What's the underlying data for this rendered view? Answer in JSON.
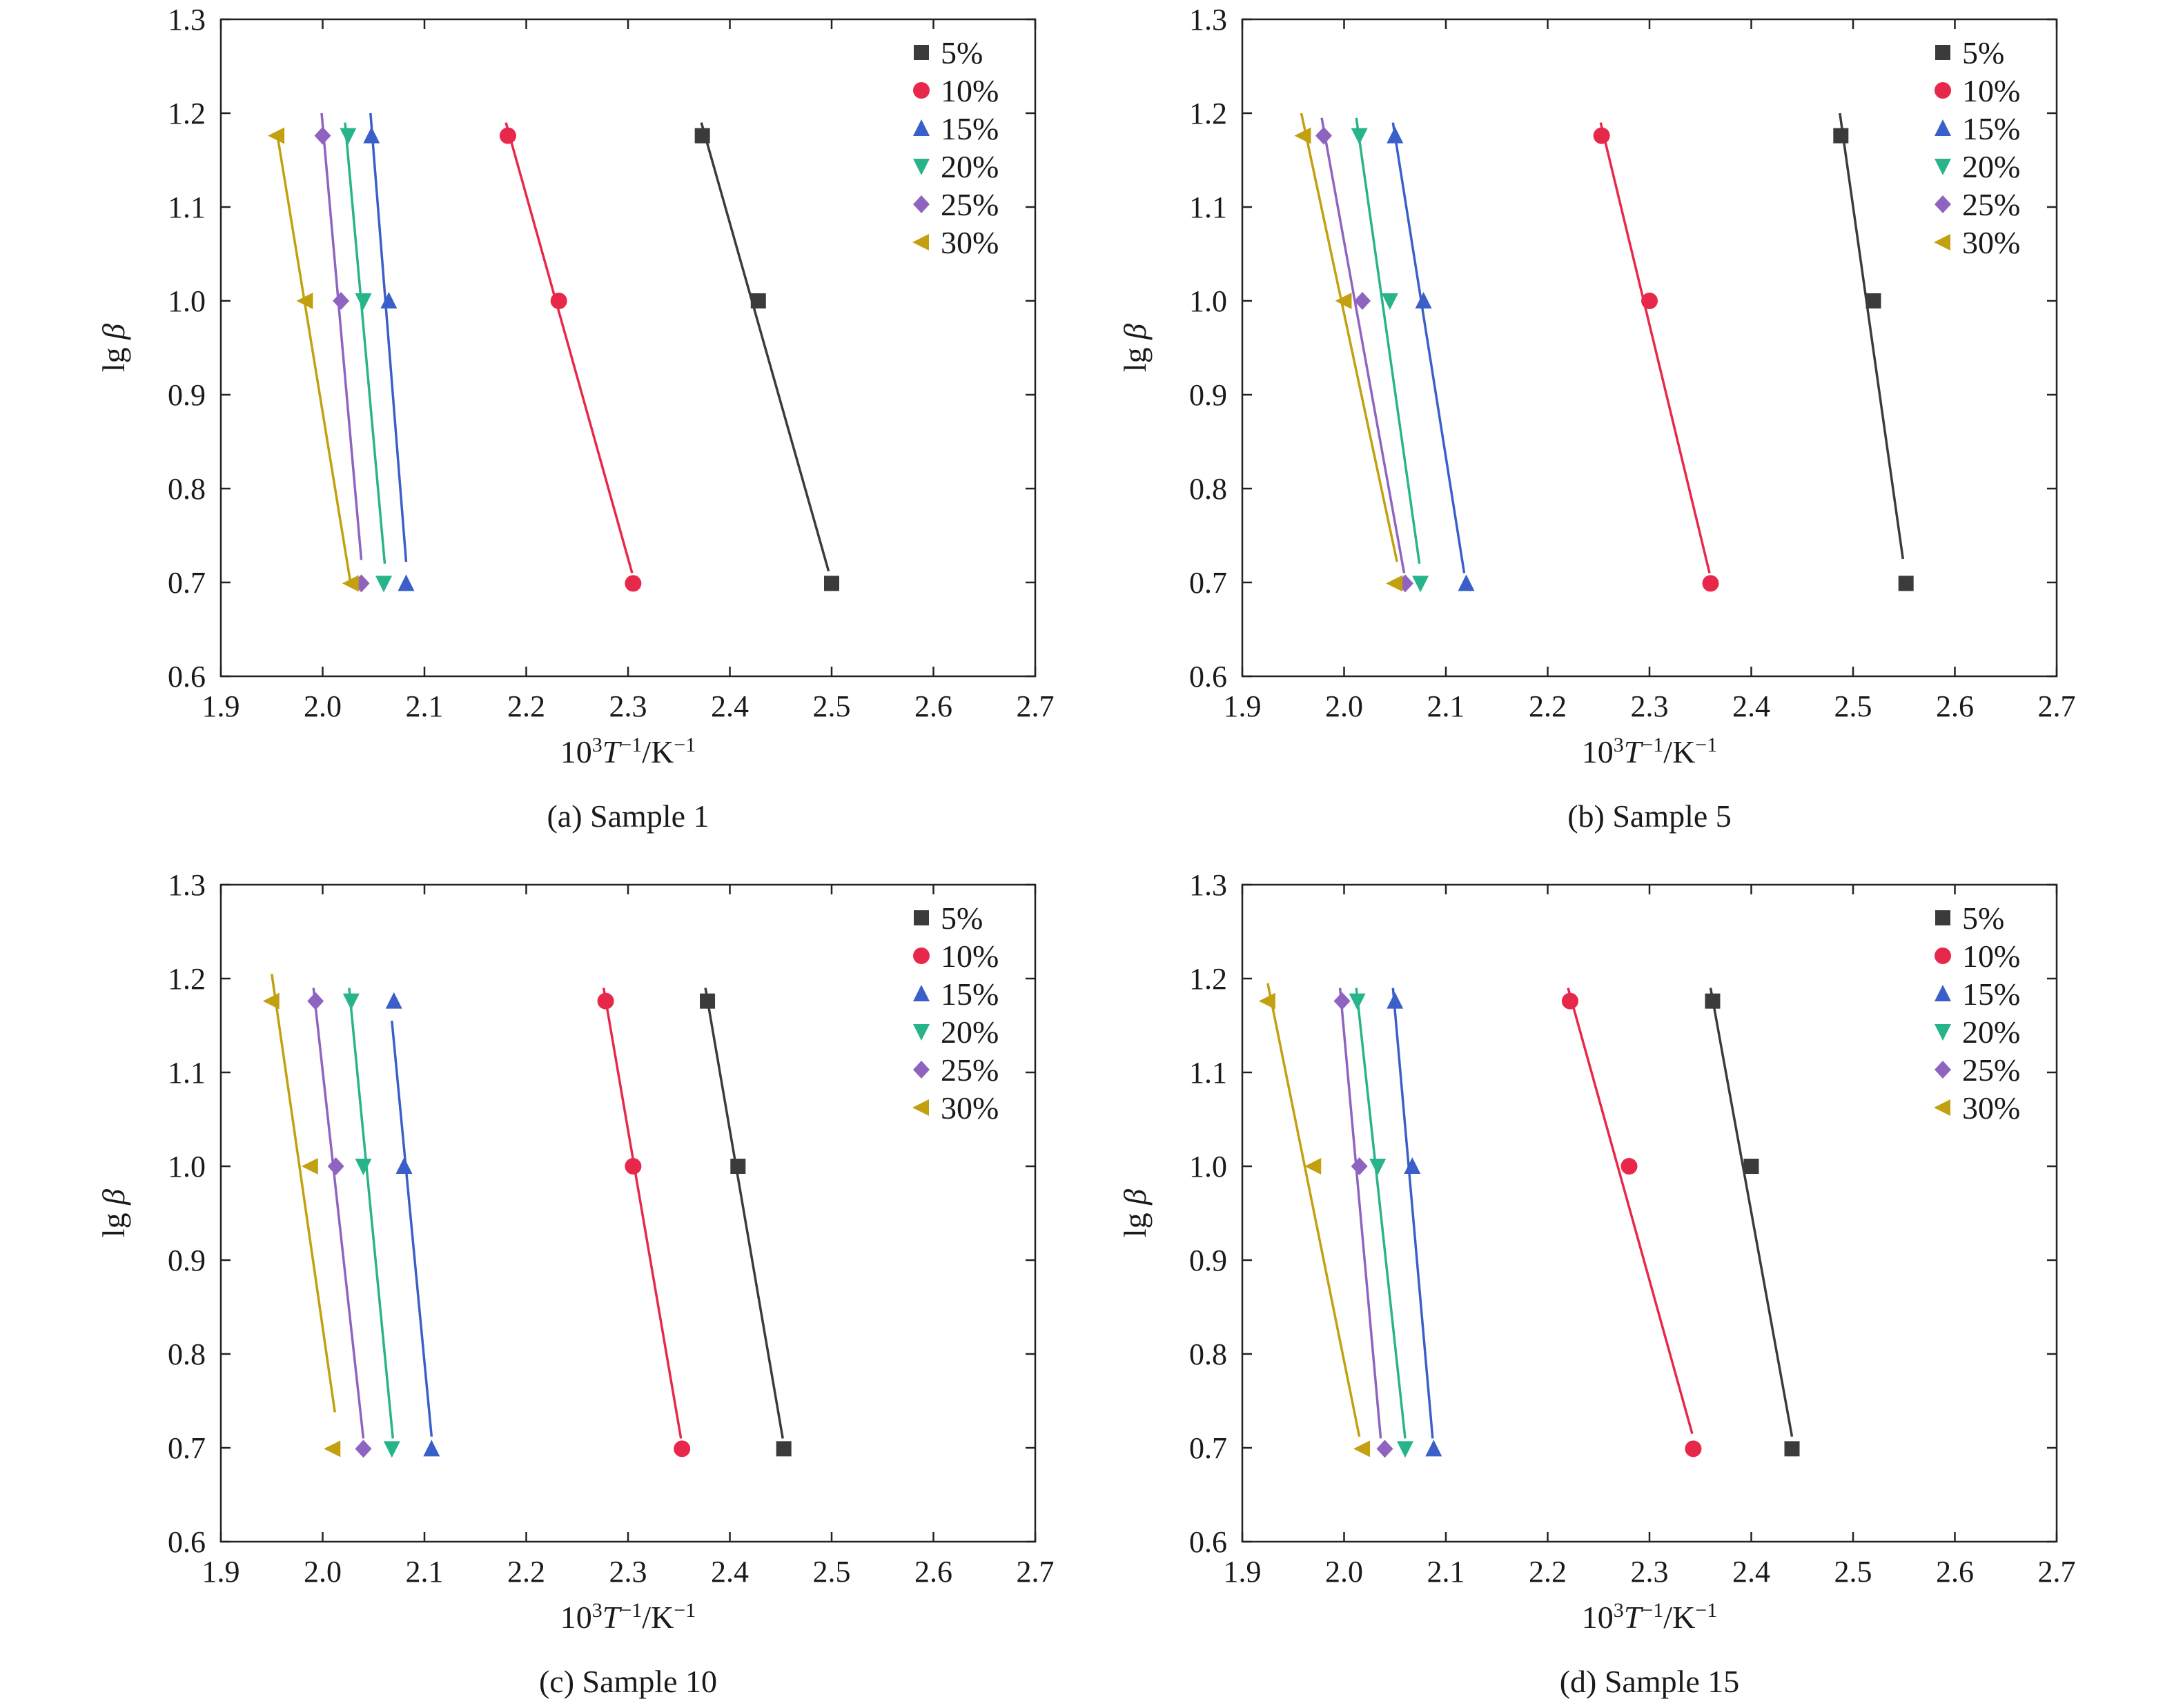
{
  "chart_data": [
    {
      "type": "scatter",
      "caption": "(a) Sample 1",
      "xlabel_prefix": "10",
      "xlabel_sup1": "3",
      "xlabel_T": "T",
      "xlabel_sup2": "−1",
      "xlabel_mid": "/K",
      "xlabel_sup3": "−1",
      "ylabel_lg": "lg ",
      "ylabel_beta": "β",
      "xlim": [
        1.9,
        2.7
      ],
      "ylim": [
        0.6,
        1.3
      ],
      "xticks": [
        "1.9",
        "2.0",
        "2.1",
        "2.2",
        "2.3",
        "2.4",
        "2.5",
        "2.6",
        "2.7"
      ],
      "yticks": [
        "0.6",
        "0.7",
        "0.8",
        "0.9",
        "1.0",
        "1.1",
        "1.2",
        "1.3"
      ],
      "grid": false,
      "legend": "top-right",
      "series": [
        {
          "name": "5%",
          "marker": "square",
          "color": "#3b3b3b",
          "x": [
            2.373,
            2.428,
            2.5
          ],
          "y": [
            1.176,
            1.0,
            0.699
          ],
          "fit": [
            [
              2.372,
              1.19
            ],
            [
              2.497,
              0.712
            ]
          ]
        },
        {
          "name": "10%",
          "marker": "circle",
          "color": "#e8284a",
          "x": [
            2.182,
            2.232,
            2.305
          ],
          "y": [
            1.176,
            1.0,
            0.699
          ],
          "fit": [
            [
              2.18,
              1.19
            ],
            [
              2.304,
              0.71
            ]
          ]
        },
        {
          "name": "15%",
          "marker": "triangle-up",
          "color": "#3a5fc8",
          "x": [
            2.048,
            2.065,
            2.082
          ],
          "y": [
            1.176,
            1.0,
            0.699
          ],
          "fit": [
            [
              2.047,
              1.2
            ],
            [
              2.082,
              0.722
            ]
          ]
        },
        {
          "name": "20%",
          "marker": "triangle-down",
          "color": "#28b48a",
          "x": [
            2.025,
            2.04,
            2.06
          ],
          "y": [
            1.176,
            1.0,
            0.699
          ],
          "fit": [
            [
              2.022,
              1.19
            ],
            [
              2.061,
              0.72
            ]
          ]
        },
        {
          "name": "25%",
          "marker": "diamond",
          "color": "#8e64c0",
          "x": [
            2.0,
            2.018,
            2.038
          ],
          "y": [
            1.176,
            1.0,
            0.699
          ],
          "fit": [
            [
              1.999,
              1.2
            ],
            [
              2.038,
              0.724
            ]
          ]
        },
        {
          "name": "30%",
          "marker": "triangle-left",
          "color": "#c2a010",
          "x": [
            1.955,
            1.983,
            2.028
          ],
          "y": [
            1.176,
            1.0,
            0.699
          ],
          "fit": [
            [
              1.955,
              1.18
            ],
            [
              2.027,
              0.702
            ]
          ]
        }
      ]
    },
    {
      "type": "scatter",
      "caption": "(b) Sample 5",
      "xlabel_prefix": "10",
      "xlabel_sup1": "3",
      "xlabel_T": "T",
      "xlabel_sup2": "−1",
      "xlabel_mid": "/K",
      "xlabel_sup3": "−1",
      "ylabel_lg": "lg ",
      "ylabel_beta": "β",
      "xlim": [
        1.9,
        2.7
      ],
      "ylim": [
        0.6,
        1.3
      ],
      "xticks": [
        "1.9",
        "2.0",
        "2.1",
        "2.2",
        "2.3",
        "2.4",
        "2.5",
        "2.6",
        "2.7"
      ],
      "yticks": [
        "0.6",
        "0.7",
        "0.8",
        "0.9",
        "1.0",
        "1.1",
        "1.2",
        "1.3"
      ],
      "grid": false,
      "legend": "top-right",
      "series": [
        {
          "name": "5%",
          "marker": "square",
          "color": "#3b3b3b",
          "x": [
            2.488,
            2.52,
            2.552
          ],
          "y": [
            1.176,
            1.0,
            0.699
          ],
          "fit": [
            [
              2.487,
              1.2
            ],
            [
              2.549,
              0.725
            ]
          ]
        },
        {
          "name": "10%",
          "marker": "circle",
          "color": "#e8284a",
          "x": [
            2.253,
            2.3,
            2.36
          ],
          "y": [
            1.176,
            1.0,
            0.699
          ],
          "fit": [
            [
              2.252,
              1.19
            ],
            [
              2.359,
              0.71
            ]
          ]
        },
        {
          "name": "15%",
          "marker": "triangle-up",
          "color": "#3a5fc8",
          "x": [
            2.05,
            2.078,
            2.12
          ],
          "y": [
            1.176,
            1.0,
            0.699
          ],
          "fit": [
            [
              2.048,
              1.19
            ],
            [
              2.118,
              0.71
            ]
          ]
        },
        {
          "name": "20%",
          "marker": "triangle-down",
          "color": "#28b48a",
          "x": [
            2.015,
            2.045,
            2.075
          ],
          "y": [
            1.176,
            1.0,
            0.699
          ],
          "fit": [
            [
              2.012,
              1.195
            ],
            [
              2.074,
              0.72
            ]
          ]
        },
        {
          "name": "25%",
          "marker": "diamond",
          "color": "#8e64c0",
          "x": [
            1.98,
            2.018,
            2.06
          ],
          "y": [
            1.176,
            1.0,
            0.699
          ],
          "fit": [
            [
              1.978,
              1.195
            ],
            [
              2.059,
              0.71
            ]
          ]
        },
        {
          "name": "30%",
          "marker": "triangle-left",
          "color": "#c2a010",
          "x": [
            1.96,
            2.0,
            2.05
          ],
          "y": [
            1.176,
            1.0,
            0.699
          ],
          "fit": [
            [
              1.958,
              1.2
            ],
            [
              2.052,
              0.722
            ]
          ]
        }
      ]
    },
    {
      "type": "scatter",
      "caption": "(c) Sample 10",
      "xlabel_prefix": "10",
      "xlabel_sup1": "3",
      "xlabel_T": "T",
      "xlabel_sup2": "−1",
      "xlabel_mid": "/K",
      "xlabel_sup3": "−1",
      "ylabel_lg": "lg ",
      "ylabel_beta": "β",
      "xlim": [
        1.9,
        2.7
      ],
      "ylim": [
        0.6,
        1.3
      ],
      "xticks": [
        "1.9",
        "2.0",
        "2.1",
        "2.2",
        "2.3",
        "2.4",
        "2.5",
        "2.6",
        "2.7"
      ],
      "yticks": [
        "0.6",
        "0.7",
        "0.8",
        "0.9",
        "1.0",
        "1.1",
        "1.2",
        "1.3"
      ],
      "grid": false,
      "legend": "top-right",
      "series": [
        {
          "name": "5%",
          "marker": "square",
          "color": "#3b3b3b",
          "x": [
            2.378,
            2.408,
            2.453
          ],
          "y": [
            1.176,
            1.0,
            0.699
          ],
          "fit": [
            [
              2.376,
              1.19
            ],
            [
              2.452,
              0.71
            ]
          ]
        },
        {
          "name": "10%",
          "marker": "circle",
          "color": "#e8284a",
          "x": [
            2.278,
            2.305,
            2.353
          ],
          "y": [
            1.176,
            1.0,
            0.699
          ],
          "fit": [
            [
              2.276,
              1.19
            ],
            [
              2.352,
              0.71
            ]
          ]
        },
        {
          "name": "15%",
          "marker": "triangle-up",
          "color": "#3a5fc8",
          "x": [
            2.07,
            2.08,
            2.107
          ],
          "y": [
            1.176,
            1.0,
            0.699
          ],
          "fit": [
            [
              2.068,
              1.155
            ],
            [
              2.107,
              0.712
            ]
          ]
        },
        {
          "name": "20%",
          "marker": "triangle-down",
          "color": "#28b48a",
          "x": [
            2.028,
            2.04,
            2.068
          ],
          "y": [
            1.176,
            1.0,
            0.699
          ],
          "fit": [
            [
              2.026,
              1.19
            ],
            [
              2.069,
              0.71
            ]
          ]
        },
        {
          "name": "25%",
          "marker": "diamond",
          "color": "#8e64c0",
          "x": [
            1.993,
            2.013,
            2.04
          ],
          "y": [
            1.176,
            1.0,
            0.699
          ],
          "fit": [
            [
              1.991,
              1.19
            ],
            [
              2.04,
              0.71
            ]
          ]
        },
        {
          "name": "30%",
          "marker": "triangle-left",
          "color": "#c2a010",
          "x": [
            1.95,
            1.988,
            2.01
          ],
          "y": [
            1.176,
            1.0,
            0.699
          ],
          "fit": [
            [
              1.95,
              1.205
            ],
            [
              2.012,
              0.738
            ]
          ]
        }
      ]
    },
    {
      "type": "scatter",
      "caption": "(d) Sample 15",
      "xlabel_prefix": "10",
      "xlabel_sup1": "3",
      "xlabel_T": "T",
      "xlabel_sup2": "−1",
      "xlabel_mid": "/K",
      "xlabel_sup3": "−1",
      "ylabel_lg": "lg ",
      "ylabel_beta": "β",
      "xlim": [
        1.9,
        2.7
      ],
      "ylim": [
        0.6,
        1.3
      ],
      "xticks": [
        "1.9",
        "2.0",
        "2.1",
        "2.2",
        "2.3",
        "2.4",
        "2.5",
        "2.6",
        "2.7"
      ],
      "yticks": [
        "0.6",
        "0.7",
        "0.8",
        "0.9",
        "1.0",
        "1.1",
        "1.2",
        "1.3"
      ],
      "grid": false,
      "legend": "top-right",
      "series": [
        {
          "name": "5%",
          "marker": "square",
          "color": "#3b3b3b",
          "x": [
            2.362,
            2.4,
            2.44
          ],
          "y": [
            1.176,
            1.0,
            0.699
          ],
          "fit": [
            [
              2.36,
              1.19
            ],
            [
              2.44,
              0.712
            ]
          ]
        },
        {
          "name": "10%",
          "marker": "circle",
          "color": "#e8284a",
          "x": [
            2.222,
            2.28,
            2.343
          ],
          "y": [
            1.176,
            1.0,
            0.699
          ],
          "fit": [
            [
              2.22,
              1.19
            ],
            [
              2.342,
              0.715
            ]
          ]
        },
        {
          "name": "15%",
          "marker": "triangle-up",
          "color": "#3a5fc8",
          "x": [
            2.05,
            2.067,
            2.088
          ],
          "y": [
            1.176,
            1.0,
            0.699
          ],
          "fit": [
            [
              2.048,
              1.19
            ],
            [
              2.087,
              0.71
            ]
          ]
        },
        {
          "name": "20%",
          "marker": "triangle-down",
          "color": "#28b48a",
          "x": [
            2.013,
            2.033,
            2.06
          ],
          "y": [
            1.176,
            1.0,
            0.699
          ],
          "fit": [
            [
              2.012,
              1.19
            ],
            [
              2.06,
              0.71
            ]
          ]
        },
        {
          "name": "25%",
          "marker": "diamond",
          "color": "#8e64c0",
          "x": [
            1.998,
            2.015,
            2.04
          ],
          "y": [
            1.176,
            1.0,
            0.699
          ],
          "fit": [
            [
              1.996,
              1.19
            ],
            [
              2.036,
              0.71
            ]
          ]
        },
        {
          "name": "30%",
          "marker": "triangle-left",
          "color": "#c2a010",
          "x": [
            1.925,
            1.97,
            2.018
          ],
          "y": [
            1.176,
            1.0,
            0.699
          ],
          "fit": [
            [
              1.925,
              1.195
            ],
            [
              2.015,
              0.712
            ]
          ]
        }
      ]
    }
  ]
}
